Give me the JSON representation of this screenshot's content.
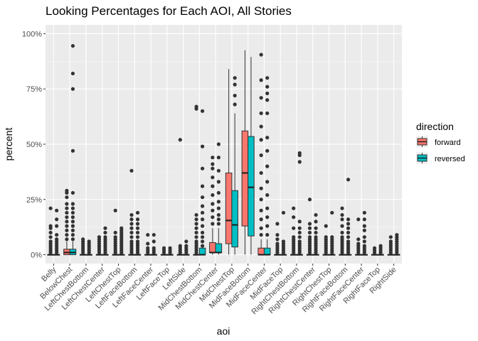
{
  "chart_data": {
    "type": "boxplot",
    "title": "Looking Percentages for Each AOI, All Stories",
    "xlabel": "aoi",
    "ylabel": "percent",
    "ylim": [
      -0.04,
      1.04
    ],
    "y_ticks": [
      0,
      0.25,
      0.5,
      0.75,
      1.0
    ],
    "y_tick_labels": [
      "0%",
      "25%",
      "50%",
      "75%",
      "100%"
    ],
    "grid": true,
    "legend": {
      "title": "direction",
      "position": "right"
    },
    "categories": [
      "Belly",
      "BelowChest",
      "LeftChestBottom",
      "LeftChestCenter",
      "LeftChestTop",
      "LeftFaceBottom",
      "LeftFaceCenter",
      "LeftFaceTop",
      "LeftSide",
      "MidChestBottom",
      "MidChestCenter",
      "MidChestTop",
      "MidFaceBottom",
      "MidFaceCenter",
      "MidFaceTop",
      "RightChestBottom",
      "RightChestCenter",
      "RightChestTop",
      "RightFaceBottom",
      "RightFaceCenter",
      "RightFaceTop",
      "RightSide"
    ],
    "series": [
      {
        "name": "forward",
        "color": "#f8766d",
        "boxes": [
          {
            "q1": 0,
            "median": 0,
            "q3": 0,
            "whisker_low": 0,
            "whisker_high": 0,
            "outliers": [
              0.01,
              0.02,
              0.03,
              0.04,
              0.05,
              0.06,
              0.08,
              0.1,
              0.12,
              0.13,
              0.21
            ]
          },
          {
            "q1": 0,
            "median": 0.01,
            "q3": 0.025,
            "whisker_low": 0,
            "whisker_high": 0.06,
            "outliers": [
              0.07,
              0.09,
              0.11,
              0.13,
              0.15,
              0.17,
              0.19,
              0.21,
              0.23,
              0.26,
              0.28,
              0.29
            ]
          },
          {
            "q1": 0,
            "median": 0,
            "q3": 0,
            "whisker_low": 0,
            "whisker_high": 0,
            "outliers": [
              0.01,
              0.02,
              0.03,
              0.04,
              0.05,
              0.06,
              0.07
            ]
          },
          {
            "q1": 0,
            "median": 0,
            "q3": 0,
            "whisker_low": 0,
            "whisker_high": 0,
            "outliers": [
              0.01,
              0.02,
              0.03,
              0.04,
              0.05,
              0.06,
              0.07,
              0.08
            ]
          },
          {
            "q1": 0,
            "median": 0,
            "q3": 0,
            "whisker_low": 0,
            "whisker_high": 0,
            "outliers": [
              0.01,
              0.02,
              0.03,
              0.04,
              0.05,
              0.06,
              0.07,
              0.08,
              0.1,
              0.2
            ]
          },
          {
            "q1": 0,
            "median": 0,
            "q3": 0,
            "whisker_low": 0,
            "whisker_high": 0,
            "outliers": [
              0.01,
              0.02,
              0.03,
              0.04,
              0.05,
              0.06,
              0.08,
              0.1,
              0.12,
              0.14,
              0.16,
              0.18,
              0.38
            ]
          },
          {
            "q1": 0,
            "median": 0,
            "q3": 0,
            "whisker_low": 0,
            "whisker_high": 0,
            "outliers": [
              0.01,
              0.02,
              0.03,
              0.05,
              0.09
            ]
          },
          {
            "q1": 0,
            "median": 0,
            "q3": 0,
            "whisker_low": 0,
            "whisker_high": 0,
            "outliers": [
              0.01,
              0.02,
              0.03
            ]
          },
          {
            "q1": 0,
            "median": 0,
            "q3": 0,
            "whisker_low": 0,
            "whisker_high": 0,
            "outliers": [
              0.01,
              0.02,
              0.03,
              0.04,
              0.52
            ]
          },
          {
            "q1": 0,
            "median": 0,
            "q3": 0,
            "whisker_low": 0,
            "whisker_high": 0,
            "outliers": [
              0.01,
              0.02,
              0.03,
              0.04,
              0.05,
              0.06,
              0.08,
              0.1,
              0.12,
              0.14,
              0.16,
              0.18,
              0.66,
              0.67
            ]
          },
          {
            "q1": 0.01,
            "median": 0.01,
            "q3": 0.055,
            "whisker_low": 0,
            "whisker_high": 0.12,
            "outliers": [
              0.14,
              0.17,
              0.2,
              0.23,
              0.27,
              0.31,
              0.35,
              0.39,
              0.41,
              0.44
            ]
          },
          {
            "q1": 0.05,
            "median": 0.155,
            "q3": 0.37,
            "whisker_low": 0,
            "whisker_high": 0.84,
            "outliers": []
          },
          {
            "q1": 0.13,
            "median": 0.37,
            "q3": 0.56,
            "whisker_low": 0,
            "whisker_high": 0.925,
            "outliers": []
          },
          {
            "q1": 0,
            "median": 0,
            "q3": 0.03,
            "whisker_low": 0,
            "whisker_high": 0.07,
            "outliers": [
              0.09,
              0.12,
              0.16,
              0.2,
              0.25,
              0.3,
              0.37,
              0.45,
              0.52,
              0.58,
              0.64,
              0.71,
              0.79,
              0.905
            ]
          },
          {
            "q1": 0,
            "median": 0,
            "q3": 0,
            "whisker_low": 0,
            "whisker_high": 0,
            "outliers": [
              0.01,
              0.02,
              0.03,
              0.04,
              0.05,
              0.07,
              0.09,
              0.14
            ]
          },
          {
            "q1": 0,
            "median": 0,
            "q3": 0,
            "whisker_low": 0,
            "whisker_high": 0,
            "outliers": [
              0.01,
              0.02,
              0.03,
              0.04,
              0.05,
              0.06,
              0.07,
              0.08,
              0.12,
              0.17,
              0.21
            ]
          },
          {
            "q1": 0,
            "median": 0,
            "q3": 0,
            "whisker_low": 0,
            "whisker_high": 0,
            "outliers": [
              0.01,
              0.02,
              0.03,
              0.04,
              0.05,
              0.06,
              0.07,
              0.08,
              0.1,
              0.12,
              0.14,
              0.25
            ]
          },
          {
            "q1": 0,
            "median": 0,
            "q3": 0,
            "whisker_low": 0,
            "whisker_high": 0,
            "outliers": [
              0.01,
              0.02,
              0.03,
              0.04,
              0.05,
              0.06,
              0.07,
              0.08,
              0.13
            ]
          },
          {
            "q1": 0,
            "median": 0,
            "q3": 0,
            "whisker_low": 0,
            "whisker_high": 0,
            "outliers": [
              0.01,
              0.02,
              0.03,
              0.04,
              0.05,
              0.06,
              0.07,
              0.08,
              0.1,
              0.13,
              0.16,
              0.18,
              0.21
            ]
          },
          {
            "q1": 0,
            "median": 0,
            "q3": 0,
            "whisker_low": 0,
            "whisker_high": 0,
            "outliers": [
              0.01,
              0.02,
              0.03,
              0.04,
              0.05,
              0.07,
              0.16
            ]
          },
          {
            "q1": 0,
            "median": 0,
            "q3": 0,
            "whisker_low": 0,
            "whisker_high": 0,
            "outliers": [
              0.01,
              0.02,
              0.03
            ]
          },
          {
            "q1": 0,
            "median": 0,
            "q3": 0,
            "whisker_low": 0,
            "whisker_high": 0,
            "outliers": [
              0.01,
              0.02,
              0.03,
              0.04,
              0.05,
              0.06,
              0.08
            ]
          }
        ]
      },
      {
        "name": "reversed",
        "color": "#00bfc4",
        "boxes": [
          {
            "q1": 0,
            "median": 0,
            "q3": 0,
            "whisker_low": 0,
            "whisker_high": 0,
            "outliers": [
              0.01,
              0.02,
              0.03,
              0.04,
              0.05,
              0.06,
              0.07,
              0.09,
              0.13,
              0.16,
              0.2
            ]
          },
          {
            "q1": 0,
            "median": 0.01,
            "q3": 0.025,
            "whisker_low": 0,
            "whisker_high": 0.06,
            "outliers": [
              0.07,
              0.09,
              0.11,
              0.13,
              0.15,
              0.17,
              0.19,
              0.21,
              0.23,
              0.28,
              0.47,
              0.75,
              0.82,
              0.945
            ]
          },
          {
            "q1": 0,
            "median": 0,
            "q3": 0,
            "whisker_low": 0,
            "whisker_high": 0,
            "outliers": [
              0.01,
              0.02,
              0.03,
              0.04,
              0.05,
              0.06
            ]
          },
          {
            "q1": 0,
            "median": 0,
            "q3": 0,
            "whisker_low": 0,
            "whisker_high": 0,
            "outliers": [
              0.01,
              0.02,
              0.03,
              0.04,
              0.05,
              0.06,
              0.07,
              0.08,
              0.1,
              0.12
            ]
          },
          {
            "q1": 0,
            "median": 0,
            "q3": 0,
            "whisker_low": 0,
            "whisker_high": 0,
            "outliers": [
              0.01,
              0.02,
              0.03,
              0.04,
              0.05,
              0.06,
              0.07,
              0.08,
              0.09,
              0.1,
              0.11,
              0.12
            ]
          },
          {
            "q1": 0,
            "median": 0,
            "q3": 0,
            "whisker_low": 0,
            "whisker_high": 0,
            "outliers": [
              0.01,
              0.02,
              0.03,
              0.04,
              0.05,
              0.06,
              0.08,
              0.1,
              0.12,
              0.14,
              0.16,
              0.19
            ]
          },
          {
            "q1": 0,
            "median": 0,
            "q3": 0,
            "whisker_low": 0,
            "whisker_high": 0,
            "outliers": [
              0.01,
              0.02,
              0.03,
              0.06,
              0.09
            ]
          },
          {
            "q1": 0,
            "median": 0,
            "q3": 0,
            "whisker_low": 0,
            "whisker_high": 0,
            "outliers": [
              0.01,
              0.02,
              0.03
            ]
          },
          {
            "q1": 0,
            "median": 0,
            "q3": 0,
            "whisker_low": 0,
            "whisker_high": 0,
            "outliers": [
              0.01,
              0.02,
              0.03,
              0.04,
              0.06
            ]
          },
          {
            "q1": 0,
            "median": 0,
            "q3": 0.03,
            "whisker_low": 0,
            "whisker_high": 0.03,
            "outliers": [
              0.04,
              0.06,
              0.08,
              0.1,
              0.13,
              0.16,
              0.19,
              0.22,
              0.26,
              0.31,
              0.39,
              0.49,
              0.65
            ]
          },
          {
            "q1": 0.01,
            "median": 0.01,
            "q3": 0.05,
            "whisker_low": 0,
            "whisker_high": 0.12,
            "outliers": [
              0.14,
              0.16,
              0.18,
              0.21,
              0.24,
              0.28,
              0.33,
              0.38,
              0.44,
              0.5
            ]
          },
          {
            "q1": 0.035,
            "median": 0.135,
            "q3": 0.29,
            "whisker_low": 0,
            "whisker_high": 0.64,
            "outliers": [
              0.68,
              0.72,
              0.77,
              0.8
            ]
          },
          {
            "q1": 0.085,
            "median": 0.305,
            "q3": 0.535,
            "whisker_low": 0,
            "whisker_high": 0.895,
            "outliers": []
          },
          {
            "q1": 0,
            "median": 0,
            "q3": 0.03,
            "whisker_low": 0,
            "whisker_high": 0.07,
            "outliers": [
              0.09,
              0.13,
              0.17,
              0.21,
              0.27,
              0.33,
              0.4,
              0.47,
              0.53,
              0.64,
              0.7,
              0.73,
              0.76,
              0.8
            ]
          },
          {
            "q1": 0,
            "median": 0,
            "q3": 0,
            "whisker_low": 0,
            "whisker_high": 0,
            "outliers": [
              0.01,
              0.02,
              0.03,
              0.04,
              0.05,
              0.06,
              0.19
            ]
          },
          {
            "q1": 0,
            "median": 0,
            "q3": 0,
            "whisker_low": 0,
            "whisker_high": 0,
            "outliers": [
              0.01,
              0.02,
              0.03,
              0.04,
              0.05,
              0.06,
              0.08,
              0.1,
              0.12,
              0.15,
              0.42,
              0.45,
              0.46
            ]
          },
          {
            "q1": 0,
            "median": 0,
            "q3": 0,
            "whisker_low": 0,
            "whisker_high": 0,
            "outliers": [
              0.01,
              0.02,
              0.03,
              0.04,
              0.05,
              0.06,
              0.07,
              0.08,
              0.1,
              0.12,
              0.15,
              0.18
            ]
          },
          {
            "q1": 0,
            "median": 0,
            "q3": 0,
            "whisker_low": 0,
            "whisker_high": 0,
            "outliers": [
              0.01,
              0.02,
              0.03,
              0.04,
              0.05,
              0.06,
              0.07,
              0.08,
              0.19
            ]
          },
          {
            "q1": 0,
            "median": 0,
            "q3": 0,
            "whisker_low": 0,
            "whisker_high": 0,
            "outliers": [
              0.01,
              0.02,
              0.03,
              0.04,
              0.05,
              0.06,
              0.08,
              0.1,
              0.12,
              0.14,
              0.16,
              0.34
            ]
          },
          {
            "q1": 0,
            "median": 0,
            "q3": 0,
            "whisker_low": 0,
            "whisker_high": 0,
            "outliers": [
              0.01,
              0.02,
              0.03,
              0.04,
              0.06,
              0.08,
              0.11,
              0.13,
              0.16,
              0.19
            ]
          },
          {
            "q1": 0,
            "median": 0,
            "q3": 0,
            "whisker_low": 0,
            "whisker_high": 0,
            "outliers": [
              0.01,
              0.02,
              0.03,
              0.04
            ]
          },
          {
            "q1": 0,
            "median": 0,
            "q3": 0,
            "whisker_low": 0,
            "whisker_high": 0,
            "outliers": [
              0.01,
              0.02,
              0.03,
              0.04,
              0.05,
              0.06,
              0.07,
              0.08,
              0.09
            ]
          }
        ]
      }
    ]
  }
}
